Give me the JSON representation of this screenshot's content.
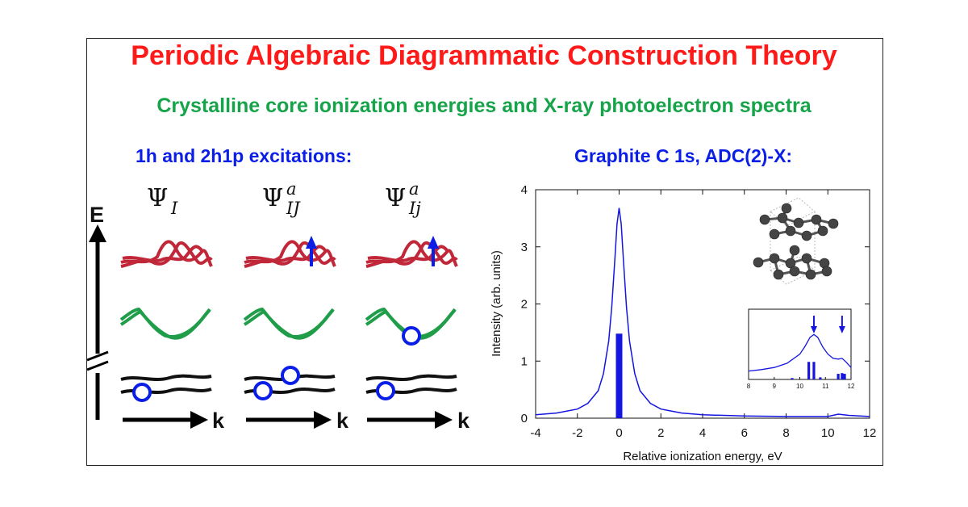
{
  "header": {
    "title": "Periodic Algebraic Diagrammatic Construction Theory",
    "subtitle": "Crystalline core ionization energies and X-ray photoelectron spectra"
  },
  "left_panel": {
    "title": "1h and 2h1p excitations:",
    "energy_label": "E",
    "k_label": "k",
    "states": [
      {
        "symbol": "Ψ",
        "subscript": "I",
        "superscript": ""
      },
      {
        "symbol": "Ψ",
        "subscript": "IJ",
        "superscript": "a"
      },
      {
        "symbol": "Ψ",
        "subscript": "Ij",
        "superscript": "a"
      }
    ]
  },
  "right_panel": {
    "title": "Graphite C 1s, ADC(2)-X:"
  },
  "colors": {
    "title": "#ff1a1a",
    "subtitle": "#16a34a",
    "panel_title": "#0b1ee6",
    "band_top": "#c0283a",
    "band_mid": "#1f9d48",
    "band_core": "#111111",
    "spectrum": "#1515e0"
  },
  "chart_data": [
    {
      "type": "line",
      "title": "",
      "xlabel": "Relative ionization energy, eV",
      "ylabel": "Intensity (arb. units)",
      "xlim": [
        -4,
        12
      ],
      "ylim": [
        0,
        4
      ],
      "xticks": [
        -4,
        -2,
        0,
        2,
        4,
        6,
        8,
        10,
        12
      ],
      "yticks": [
        0,
        1,
        2,
        3,
        4
      ],
      "grid": false,
      "series": [
        {
          "kind": "curve",
          "x": [
            -4,
            -3,
            -2,
            -1.5,
            -1,
            -0.75,
            -0.5,
            -0.35,
            -0.2,
            -0.1,
            0,
            0.1,
            0.2,
            0.35,
            0.5,
            0.75,
            1,
            1.5,
            2,
            3,
            4,
            6,
            8,
            10,
            10.5,
            11,
            12
          ],
          "y": [
            0.06,
            0.09,
            0.16,
            0.26,
            0.48,
            0.78,
            1.35,
            1.95,
            2.8,
            3.4,
            3.68,
            3.4,
            2.8,
            1.95,
            1.35,
            0.78,
            0.48,
            0.26,
            0.16,
            0.09,
            0.06,
            0.04,
            0.03,
            0.03,
            0.07,
            0.05,
            0.03
          ]
        },
        {
          "kind": "stick",
          "x": [
            0
          ],
          "y": [
            1.48
          ]
        }
      ]
    },
    {
      "type": "line",
      "title": "",
      "xlim": [
        8,
        12
      ],
      "xticks": [
        8,
        9,
        10,
        11,
        12
      ],
      "series": [
        {
          "kind": "curve",
          "x": [
            8,
            8.5,
            9,
            9.5,
            10,
            10.2,
            10.4,
            10.55,
            10.7,
            10.9,
            11.1,
            11.3,
            11.5,
            11.65,
            11.8,
            12
          ],
          "y": [
            0.12,
            0.14,
            0.17,
            0.23,
            0.36,
            0.47,
            0.6,
            0.64,
            0.6,
            0.46,
            0.36,
            0.3,
            0.29,
            0.3,
            0.25,
            0.17
          ]
        },
        {
          "kind": "stick",
          "x": [
            9.7,
            10.35,
            10.55,
            10.8,
            11.5,
            11.65,
            11.75
          ],
          "y": [
            0.02,
            0.25,
            0.25,
            0.03,
            0.08,
            0.09,
            0.08
          ]
        }
      ],
      "annotations": [
        {
          "type": "arrow",
          "x": 10.55
        },
        {
          "type": "arrow",
          "x": 11.65
        }
      ]
    }
  ]
}
